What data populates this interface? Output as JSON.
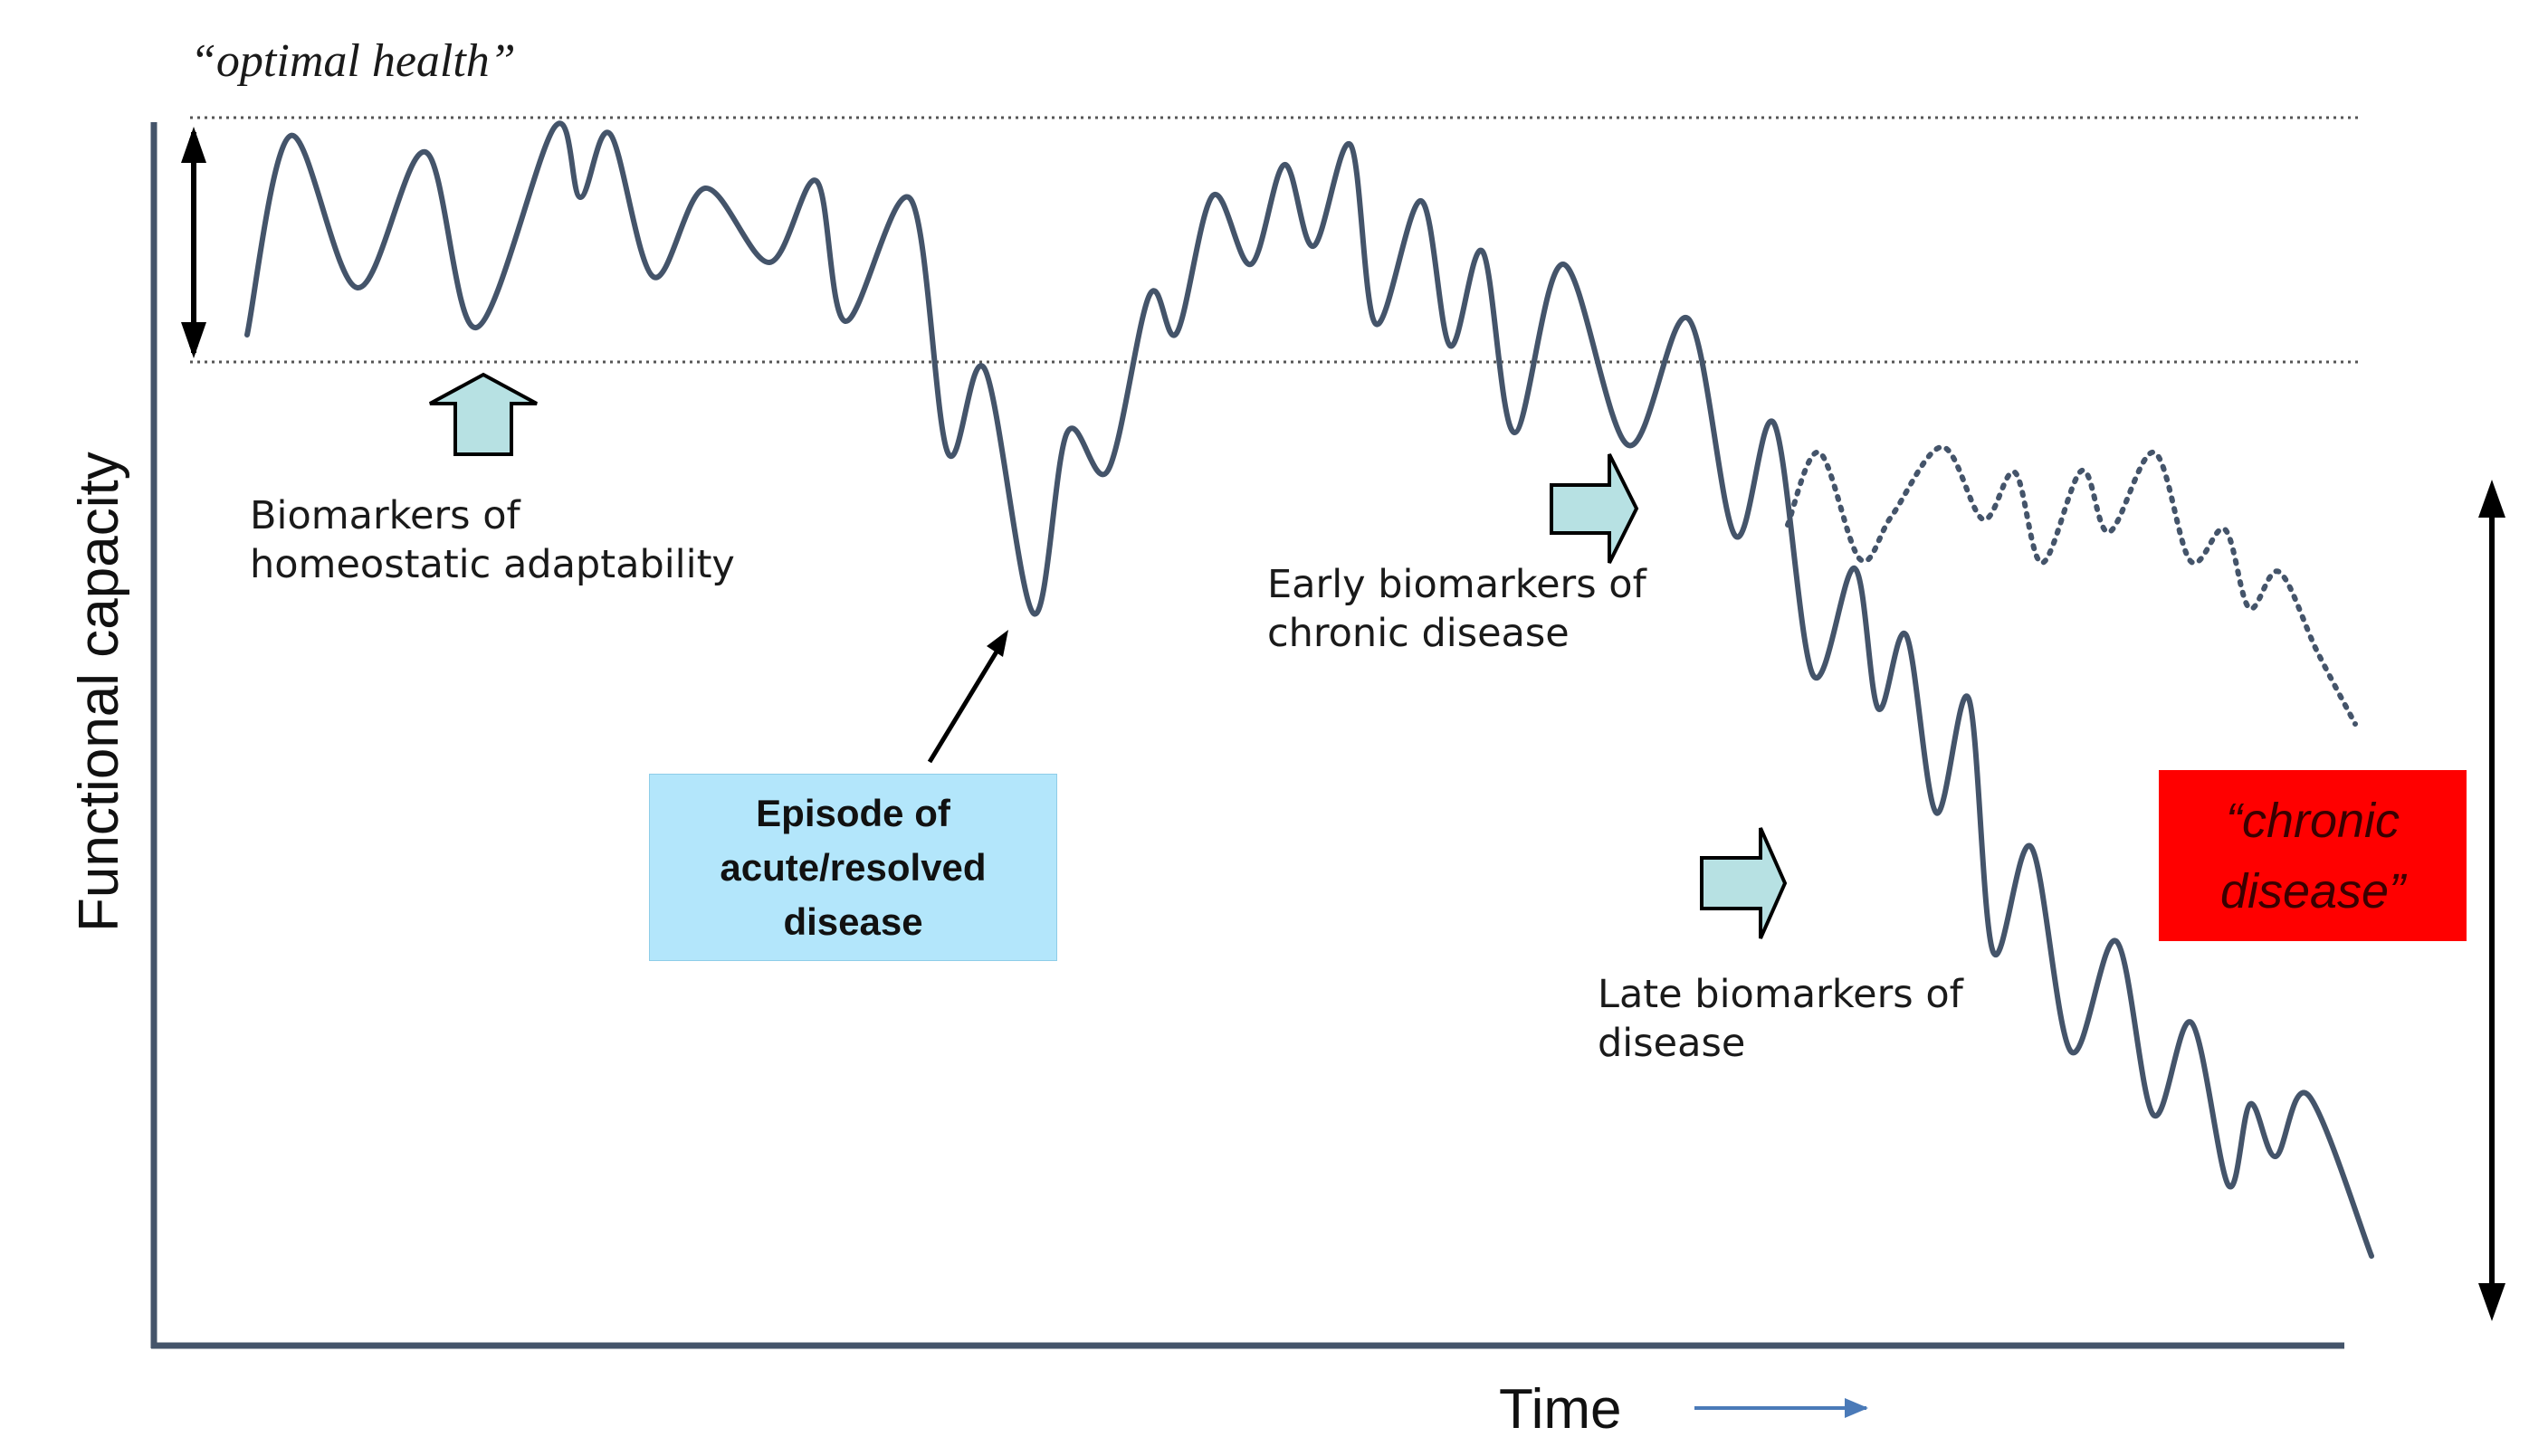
{
  "labels": {
    "optimal_health": "“optimal health”",
    "y_axis": "Functional capacity",
    "x_axis": "Time",
    "homeostatic": [
      "Biomarkers of",
      "homeostatic adaptability"
    ],
    "early": [
      "Early biomarkers of",
      "chronic disease"
    ],
    "late": [
      "Late biomarkers of",
      "disease"
    ],
    "acute_episode": [
      "Episode of",
      "acute/resolved",
      "disease"
    ],
    "chronic_disease": [
      "“chronic",
      "disease”"
    ]
  },
  "colors": {
    "curve": "#44546a",
    "axis": "#44546a",
    "acute_box_fill": "#b3e6fb",
    "chronic_box_fill": "#ff0000",
    "arrow_fill": "#b7e1e3",
    "time_arrow": "#4a7ab8"
  }
}
